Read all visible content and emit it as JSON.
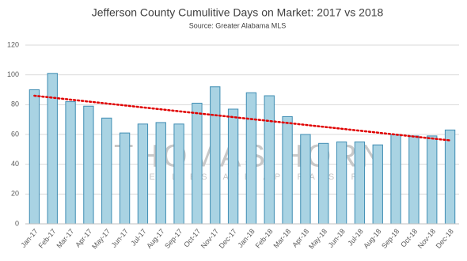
{
  "chart_data": {
    "type": "bar",
    "title": "Jefferson County Cumulitive Days on Market: 2017 vs 2018",
    "subtitle": "Source: Greater Alabama MLS",
    "watermark_title": "THOMAS HORN",
    "watermark_subtitle": "REAL ESTATE APPRAISER",
    "categories": [
      "Jan-17",
      "Feb-17",
      "Mar-17",
      "Apr-17",
      "May-17",
      "Jun-17",
      "Jul-17",
      "Aug-17",
      "Sep-17",
      "Oct-17",
      "Nov-17",
      "Dec-17",
      "Jan-18",
      "Feb-18",
      "Mar-18",
      "Apr-18",
      "May-18",
      "Jun-18",
      "Jul-18",
      "Aug-18",
      "Sep-18",
      "Oct-18",
      "Nov-18",
      "Dec-18"
    ],
    "values": [
      90,
      101,
      82,
      79,
      71,
      61,
      67,
      68,
      67,
      81,
      92,
      77,
      88,
      86,
      72,
      60,
      54,
      55,
      55,
      53,
      60,
      59,
      59,
      63
    ],
    "color": "#a9d3e3",
    "edge_color": "#3f8db3",
    "trend": {
      "color": "#e00000",
      "start": 86,
      "end": 56
    },
    "ylim": [
      0,
      120
    ],
    "yticks": [
      0,
      20,
      40,
      60,
      80,
      100,
      120
    ],
    "grid": true
  }
}
